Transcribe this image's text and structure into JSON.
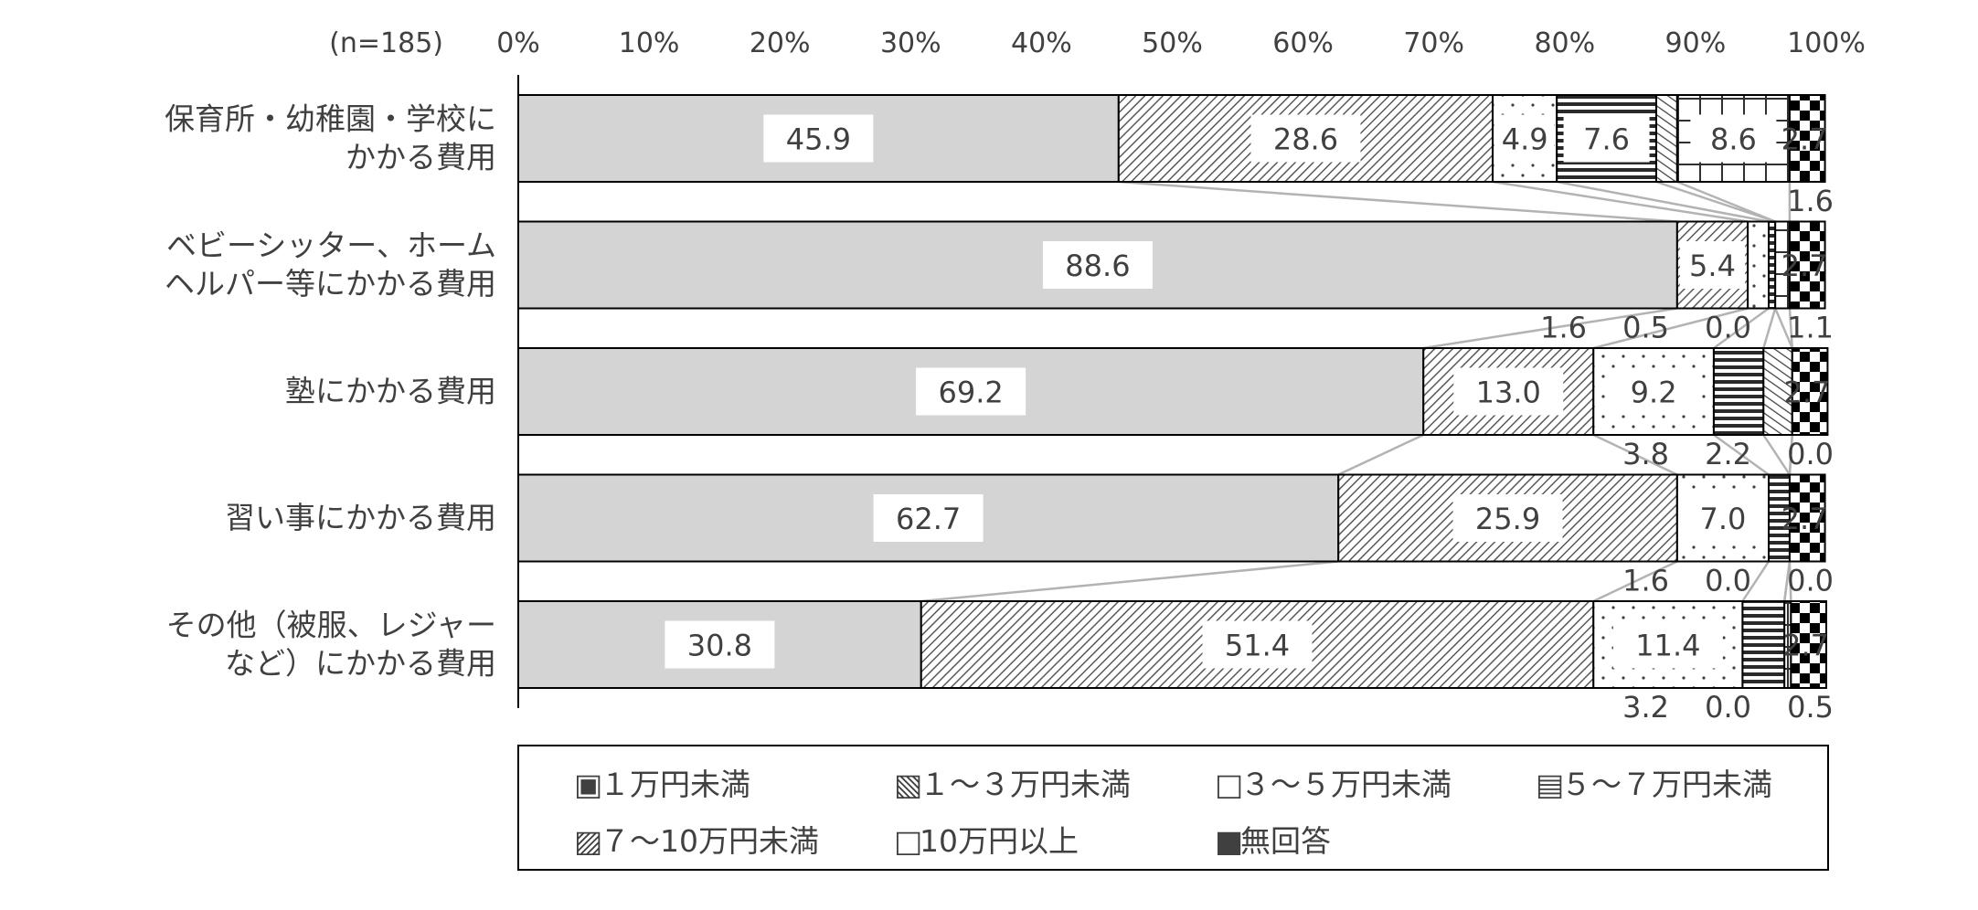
{
  "chart_data": {
    "type": "bar",
    "orientation": "horizontal",
    "stacked": true,
    "sample_note": "(n=185)",
    "x_ticks": [
      "0%",
      "10%",
      "20%",
      "30%",
      "40%",
      "50%",
      "60%",
      "70%",
      "80%",
      "90%",
      "100%"
    ],
    "xlim": [
      0,
      100
    ],
    "categories": [
      [
        "保育所・幼稚園・学校に",
        "かかる費用"
      ],
      [
        "ベビーシッター、ホーム",
        "ヘルパー等にかかる費用"
      ],
      [
        "塾にかかる費用"
      ],
      [
        "習い事にかかる費用"
      ],
      [
        "その他（被服、レジャー",
        "など）にかかる費用"
      ]
    ],
    "series": [
      {
        "name": "１万円未満",
        "values": [
          45.9,
          88.6,
          69.2,
          62.7,
          30.8
        ],
        "labels": [
          "45.9",
          "88.6",
          "69.2",
          "62.7",
          "30.8"
        ]
      },
      {
        "name": "１～３万円未満",
        "values": [
          28.6,
          5.4,
          13.0,
          25.9,
          51.4
        ],
        "labels": [
          "28.6",
          "5.4",
          "13.0",
          "25.9",
          "51.4"
        ]
      },
      {
        "name": "３～５万円未満",
        "values": [
          4.9,
          1.6,
          9.2,
          7.0,
          11.4
        ],
        "labels": [
          "4.9",
          "1.6",
          "9.2",
          "7.0",
          "11.4"
        ]
      },
      {
        "name": "５～７万円未満",
        "values": [
          7.6,
          0.5,
          3.8,
          1.6,
          3.2
        ],
        "labels": [
          "7.6",
          "0.5",
          "3.8",
          "1.6",
          "3.2"
        ]
      },
      {
        "name": "７～10万円未満",
        "values": [
          1.6,
          0.0,
          2.2,
          0.0,
          0.0
        ],
        "labels": [
          "1.6",
          "0.0",
          "2.2",
          "0.0",
          "0.0"
        ]
      },
      {
        "name": "10万円以上",
        "values": [
          8.6,
          1.1,
          0.0,
          0.0,
          0.5
        ],
        "labels": [
          "8.6",
          "1.1",
          "0.0",
          "0.0",
          "0.5"
        ]
      },
      {
        "name": "無回答",
        "values": [
          2.7,
          2.7,
          2.7,
          2.7,
          2.7
        ],
        "labels": [
          "2.7",
          "2.7",
          "2.7",
          "2.7",
          "2.7"
        ]
      }
    ],
    "legend": {
      "position": "bottom",
      "markers": [
        "▣",
        "▧",
        "□",
        "▤",
        "▨",
        "□",
        "■"
      ]
    },
    "grid": false,
    "colors": [
      "#d4d4d4",
      "#595959",
      "#7f7f7f",
      "#3f3f3f",
      "#595959",
      "#404040",
      "#000000"
    ]
  }
}
